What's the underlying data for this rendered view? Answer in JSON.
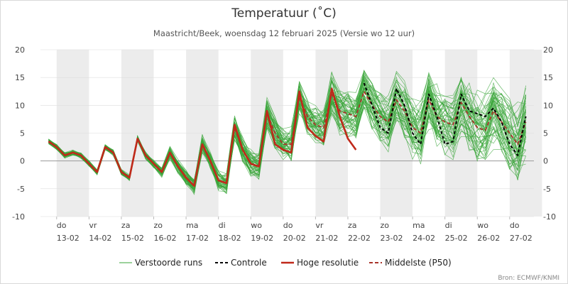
{
  "title": "Temperatuur (˚C)",
  "subtitle": "Maastricht/Beek, woensdag 12 februari 2025 (Versie wo 12 uur)",
  "source": "Bron: ECMWF/KNMI",
  "legend": {
    "ensemble": "Verstoorde runs",
    "control": "Controle",
    "hires": "Hoge resolutie",
    "median": "Middelste (P50)"
  },
  "colors": {
    "ensemble": "#3aa53a",
    "control": "#000000",
    "hires": "#c0291a",
    "median": "#a8332a",
    "weekend_band": "#ececec",
    "zero_line": "#999999",
    "grid": "#dddddd"
  },
  "chart_data": {
    "type": "line",
    "title": "Temperatuur (˚C)",
    "y_unit": "˚C",
    "ylim": [
      -10,
      20
    ],
    "y_ticks": [
      -10,
      -5,
      0,
      5,
      10,
      15,
      20
    ],
    "x_range_days": [
      -0.5,
      14.75
    ],
    "x_tick_labels": [
      {
        "day": "do",
        "date": "13-02"
      },
      {
        "day": "vr",
        "date": "14-02"
      },
      {
        "day": "za",
        "date": "15-02"
      },
      {
        "day": "zo",
        "date": "16-02"
      },
      {
        "day": "ma",
        "date": "17-02"
      },
      {
        "day": "di",
        "date": "18-02"
      },
      {
        "day": "wo",
        "date": "19-02"
      },
      {
        "day": "do",
        "date": "20-02"
      },
      {
        "day": "vr",
        "date": "21-02"
      },
      {
        "day": "za",
        "date": "22-02"
      },
      {
        "day": "zo",
        "date": "23-02"
      },
      {
        "day": "ma",
        "date": "24-02"
      },
      {
        "day": "di",
        "date": "25-02"
      },
      {
        "day": "wo",
        "date": "26-02"
      },
      {
        "day": "do",
        "date": "27-02"
      }
    ],
    "shaded_day_indices": [
      0,
      2,
      4,
      6,
      8,
      10,
      12,
      14
    ],
    "grid": true,
    "legend_position": "bottom",
    "hires_series": {
      "name": "Hoge resolutie",
      "points": [
        [
          -0.25,
          3.5
        ],
        [
          0,
          2.5
        ],
        [
          0.25,
          1.0
        ],
        [
          0.5,
          1.5
        ],
        [
          0.75,
          1.0
        ],
        [
          1,
          -0.5
        ],
        [
          1.25,
          -2
        ],
        [
          1.5,
          2.5
        ],
        [
          1.75,
          1.5
        ],
        [
          2,
          -2
        ],
        [
          2.25,
          -3
        ],
        [
          2.5,
          4
        ],
        [
          2.75,
          1
        ],
        [
          3,
          -0.5
        ],
        [
          3.25,
          -2
        ],
        [
          3.5,
          1.5
        ],
        [
          3.75,
          -1
        ],
        [
          4,
          -3
        ],
        [
          4.25,
          -4.5
        ],
        [
          4.5,
          3
        ],
        [
          4.75,
          0
        ],
        [
          5,
          -3.5
        ],
        [
          5.25,
          -4
        ],
        [
          5.5,
          6.5
        ],
        [
          5.75,
          2
        ],
        [
          6,
          -0.5
        ],
        [
          6.25,
          -1
        ],
        [
          6.5,
          9
        ],
        [
          6.75,
          3
        ],
        [
          7,
          2
        ],
        [
          7.25,
          1.5
        ],
        [
          7.5,
          12.5
        ],
        [
          7.75,
          6
        ],
        [
          8,
          4.5
        ],
        [
          8.25,
          3.5
        ],
        [
          8.5,
          13
        ],
        [
          8.75,
          8
        ],
        [
          9,
          4
        ],
        [
          9.25,
          2
        ]
      ]
    },
    "control_series": {
      "name": "Controle",
      "points": [
        [
          9.5,
          14
        ],
        [
          9.75,
          10
        ],
        [
          10,
          6
        ],
        [
          10.25,
          5
        ],
        [
          10.5,
          13
        ],
        [
          10.75,
          10
        ],
        [
          11,
          5
        ],
        [
          11.25,
          3
        ],
        [
          11.5,
          12
        ],
        [
          11.75,
          8
        ],
        [
          12,
          3
        ],
        [
          12.25,
          3.5
        ],
        [
          12.5,
          12
        ],
        [
          12.75,
          9
        ],
        [
          13,
          8.5
        ],
        [
          13.25,
          8
        ],
        [
          13.5,
          9.5
        ],
        [
          13.75,
          7
        ],
        [
          14,
          3
        ],
        [
          14.25,
          1
        ],
        [
          14.5,
          8
        ]
      ]
    },
    "median_series": {
      "name": "Middelste (P50)",
      "points": [
        [
          -0.25,
          3.5
        ],
        [
          0,
          2.5
        ],
        [
          0.25,
          1.0
        ],
        [
          0.5,
          1.5
        ],
        [
          0.75,
          1.0
        ],
        [
          1,
          -0.5
        ],
        [
          1.25,
          -2
        ],
        [
          1.5,
          2.5
        ],
        [
          1.75,
          1.5
        ],
        [
          2,
          -2
        ],
        [
          2.25,
          -3
        ],
        [
          2.5,
          4
        ],
        [
          2.75,
          1
        ],
        [
          3,
          -0.5
        ],
        [
          3.25,
          -2
        ],
        [
          3.5,
          1.5
        ],
        [
          3.75,
          -1
        ],
        [
          4,
          -3
        ],
        [
          4.25,
          -4.5
        ],
        [
          4.5,
          3
        ],
        [
          4.75,
          0
        ],
        [
          5,
          -3.5
        ],
        [
          5.25,
          -4
        ],
        [
          5.5,
          6
        ],
        [
          5.75,
          2
        ],
        [
          6,
          -0.5
        ],
        [
          6.25,
          -1
        ],
        [
          6.5,
          8.5
        ],
        [
          6.75,
          5
        ],
        [
          7,
          3
        ],
        [
          7.25,
          3
        ],
        [
          7.5,
          11.5
        ],
        [
          7.75,
          8
        ],
        [
          8,
          6.5
        ],
        [
          8.25,
          6
        ],
        [
          8.5,
          12
        ],
        [
          8.75,
          9
        ],
        [
          9,
          8.5
        ],
        [
          9.25,
          8
        ],
        [
          9.5,
          12.5
        ],
        [
          9.75,
          10
        ],
        [
          10,
          8
        ],
        [
          10.25,
          7
        ],
        [
          10.5,
          11
        ],
        [
          10.75,
          9
        ],
        [
          11,
          6
        ],
        [
          11.25,
          5
        ],
        [
          11.5,
          11
        ],
        [
          11.75,
          8
        ],
        [
          12,
          7
        ],
        [
          12.25,
          6.5
        ],
        [
          12.5,
          10.5
        ],
        [
          12.75,
          8
        ],
        [
          13,
          6
        ],
        [
          13.25,
          5.5
        ],
        [
          13.5,
          9
        ],
        [
          13.75,
          7
        ],
        [
          14,
          5
        ],
        [
          14.25,
          3
        ],
        [
          14.5,
          7
        ]
      ]
    },
    "ensemble_members": 50
  }
}
